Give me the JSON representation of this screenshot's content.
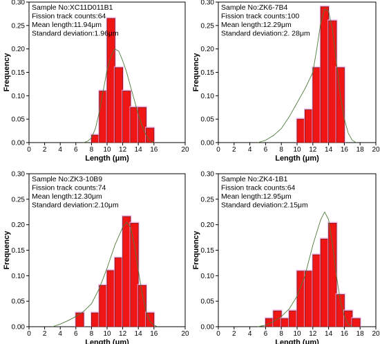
{
  "chart_data": [
    {
      "type": "bar",
      "info": [
        "Sample No:XC11D011B1",
        "Fission track counts:64",
        "Mean length:11.94μm",
        "Standard deviation:1.96μm"
      ],
      "xlabel": "Length (μm)",
      "ylabel": "Frequency",
      "xlim": [
        0,
        20
      ],
      "ylim": [
        0,
        0.3
      ],
      "xticks": [
        "0",
        "2",
        "4",
        "6",
        "8",
        "10",
        "12",
        "14",
        "16",
        "20"
      ],
      "xtick_values": [
        0,
        2,
        4,
        6,
        8,
        10,
        12,
        14,
        16,
        20
      ],
      "yticks": [
        "0.00",
        "0.05",
        "0.10",
        "0.15",
        "0.20",
        "0.25",
        "0.30"
      ],
      "ytick_values": [
        0,
        0.05,
        0.1,
        0.15,
        0.2,
        0.25,
        0.3
      ],
      "bin_width": 1,
      "bins": [
        {
          "x": 8,
          "value": 0.016
        },
        {
          "x": 9,
          "value": 0.11
        },
        {
          "x": 10,
          "value": 0.265
        },
        {
          "x": 11,
          "value": 0.16
        },
        {
          "x": 12,
          "value": 0.11
        },
        {
          "x": 13,
          "value": 0.075
        },
        {
          "x": 14,
          "value": 0.075
        },
        {
          "x": 15,
          "value": 0.031
        }
      ],
      "curve": [
        [
          7,
          0
        ],
        [
          7.5,
          0.003
        ],
        [
          8,
          0.01
        ],
        [
          8.5,
          0.03
        ],
        [
          9,
          0.065
        ],
        [
          9.5,
          0.11
        ],
        [
          10,
          0.155
        ],
        [
          10.5,
          0.185
        ],
        [
          11,
          0.2
        ],
        [
          11.5,
          0.195
        ],
        [
          12,
          0.175
        ],
        [
          12.5,
          0.15
        ],
        [
          13,
          0.12
        ],
        [
          13.5,
          0.09
        ],
        [
          14,
          0.06
        ],
        [
          14.5,
          0.035
        ],
        [
          15,
          0.015
        ],
        [
          15.5,
          0.004
        ],
        [
          16,
          0
        ]
      ]
    },
    {
      "type": "bar",
      "info": [
        "Sample No:ZK6-7B4",
        "Fission track counts:100",
        "Mean length:12.29μm",
        "Standard deviation:2. 28μm"
      ],
      "xlabel": "Length (μm)",
      "ylabel": "Frequency",
      "xlim": [
        0,
        20
      ],
      "ylim": [
        0,
        0.3
      ],
      "xticks": [
        "0",
        "2",
        "4",
        "6",
        "8",
        "10",
        "12",
        "14",
        "16",
        "18",
        "20"
      ],
      "xtick_values": [
        0,
        2,
        4,
        6,
        8,
        10,
        12,
        14,
        16,
        18,
        20
      ],
      "yticks": [
        "0.00",
        "0.05",
        "0.10",
        "0.15",
        "0.20",
        "0.25",
        "0.30"
      ],
      "ytick_values": [
        0,
        0.05,
        0.1,
        0.15,
        0.2,
        0.25,
        0.3
      ],
      "bin_width": 1,
      "bins": [
        {
          "x": 10,
          "value": 0.05
        },
        {
          "x": 11,
          "value": 0.07
        },
        {
          "x": 12,
          "value": 0.16
        },
        {
          "x": 13,
          "value": 0.29
        },
        {
          "x": 14,
          "value": 0.26
        },
        {
          "x": 15,
          "value": 0.16
        }
      ],
      "curve": [
        [
          5,
          0
        ],
        [
          6,
          0.005
        ],
        [
          7,
          0.015
        ],
        [
          8,
          0.03
        ],
        [
          9,
          0.055
        ],
        [
          10,
          0.085
        ],
        [
          11,
          0.115
        ],
        [
          12,
          0.15
        ],
        [
          12.5,
          0.2
        ],
        [
          13,
          0.255
        ],
        [
          13.5,
          0.285
        ],
        [
          14,
          0.28
        ],
        [
          14.5,
          0.24
        ],
        [
          15,
          0.17
        ],
        [
          15.5,
          0.1
        ],
        [
          16,
          0.05
        ],
        [
          16.5,
          0.02
        ],
        [
          17,
          0.005
        ],
        [
          17.5,
          0
        ]
      ]
    },
    {
      "type": "bar",
      "info": [
        "Sample No:ZK3-10B9",
        "Fission track counts:74",
        "Mean length:12.30μm",
        "Standard deviation:2.10μm"
      ],
      "xlabel": "Length (μm)",
      "ylabel": "Frequency",
      "xlim": [
        0,
        20
      ],
      "ylim": [
        0,
        0.3
      ],
      "xticks": [
        "0",
        "2",
        "4",
        "6",
        "8",
        "10",
        "12",
        "14",
        "16",
        "20"
      ],
      "xtick_values": [
        0,
        2,
        4,
        6,
        8,
        10,
        12,
        14,
        16,
        20
      ],
      "yticks": [
        "0.00",
        "0.05",
        "0.10",
        "0.15",
        "0.20",
        "0.25",
        "0.30"
      ],
      "ytick_values": [
        0,
        0.05,
        0.1,
        0.15,
        0.2,
        0.25,
        0.3
      ],
      "bin_width": 1,
      "bins": [
        {
          "x": 6,
          "value": 0.027
        },
        {
          "x": 8,
          "value": 0.027
        },
        {
          "x": 9,
          "value": 0.081
        },
        {
          "x": 10,
          "value": 0.11
        },
        {
          "x": 11,
          "value": 0.135
        },
        {
          "x": 12,
          "value": 0.216
        },
        {
          "x": 13,
          "value": 0.203
        },
        {
          "x": 14,
          "value": 0.081
        },
        {
          "x": 15,
          "value": 0.027
        }
      ],
      "curve": [
        [
          3,
          0
        ],
        [
          4,
          0.005
        ],
        [
          5,
          0.012
        ],
        [
          6,
          0.02
        ],
        [
          7,
          0.03
        ],
        [
          8,
          0.045
        ],
        [
          9,
          0.075
        ],
        [
          10,
          0.115
        ],
        [
          11,
          0.16
        ],
        [
          12,
          0.195
        ],
        [
          12.5,
          0.205
        ],
        [
          13,
          0.195
        ],
        [
          13.5,
          0.16
        ],
        [
          14,
          0.11
        ],
        [
          14.5,
          0.065
        ],
        [
          15,
          0.03
        ],
        [
          15.5,
          0.01
        ],
        [
          16,
          0.003
        ],
        [
          16.5,
          0
        ]
      ]
    },
    {
      "type": "bar",
      "info": [
        "Sample No:ZK4-1B1",
        "Fission track counts:64",
        "Mean length:12.95μm",
        "Standard deviation:2.15μm"
      ],
      "xlabel": "Length (μm)",
      "ylabel": "Frequency",
      "xlim": [
        0,
        20
      ],
      "ylim": [
        0,
        0.3
      ],
      "xticks": [
        "0",
        "2",
        "4",
        "6",
        "8",
        "10",
        "12",
        "14",
        "16",
        "18",
        "20"
      ],
      "xtick_values": [
        0,
        2,
        4,
        6,
        8,
        10,
        12,
        14,
        16,
        18,
        20
      ],
      "yticks": [
        "0.00",
        "0.05",
        "0.10",
        "0.15",
        "0.20",
        "0.25",
        "0.30"
      ],
      "ytick_values": [
        0,
        0.05,
        0.1,
        0.15,
        0.2,
        0.25,
        0.3
      ],
      "bin_width": 1,
      "bins": [
        {
          "x": 6,
          "value": 0.016
        },
        {
          "x": 7,
          "value": 0.031
        },
        {
          "x": 8,
          "value": 0.016
        },
        {
          "x": 9,
          "value": 0.031
        },
        {
          "x": 10,
          "value": 0.109
        },
        {
          "x": 11,
          "value": 0.109
        },
        {
          "x": 12,
          "value": 0.141
        },
        {
          "x": 13,
          "value": 0.172
        },
        {
          "x": 14,
          "value": 0.203
        },
        {
          "x": 15,
          "value": 0.063
        },
        {
          "x": 16,
          "value": 0.031
        },
        {
          "x": 17,
          "value": 0.016
        }
      ],
      "curve": [
        [
          5,
          0
        ],
        [
          6,
          0.003
        ],
        [
          7,
          0.01
        ],
        [
          8,
          0.02
        ],
        [
          9,
          0.035
        ],
        [
          10,
          0.06
        ],
        [
          11,
          0.1
        ],
        [
          12,
          0.16
        ],
        [
          13,
          0.21
        ],
        [
          13.5,
          0.225
        ],
        [
          14,
          0.21
        ],
        [
          14.5,
          0.16
        ],
        [
          15,
          0.1
        ],
        [
          15.5,
          0.05
        ],
        [
          16,
          0.02
        ],
        [
          16.5,
          0.005
        ],
        [
          17,
          0
        ]
      ]
    }
  ]
}
